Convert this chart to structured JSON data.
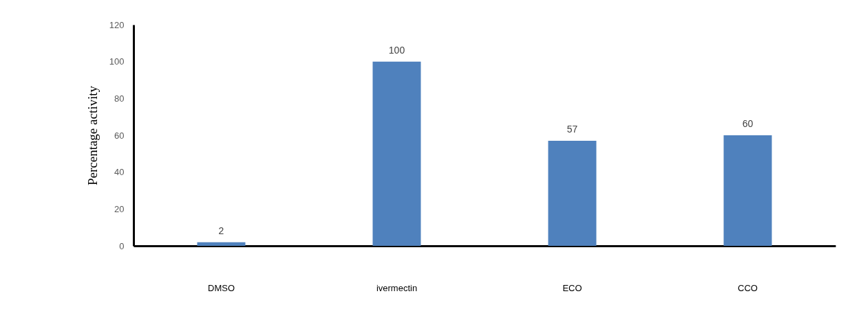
{
  "chart_data": {
    "type": "bar",
    "ylabel": "Percentage activity",
    "categories": [
      "DMSO",
      "ivermectin",
      "ECO",
      "CCO"
    ],
    "values": [
      2,
      100,
      57,
      60
    ],
    "color": "#4f81bd",
    "ylim": [
      0,
      120
    ],
    "yticks": [
      0,
      20,
      40,
      60,
      80,
      100,
      120
    ],
    "data_labels": true,
    "grid": false
  }
}
